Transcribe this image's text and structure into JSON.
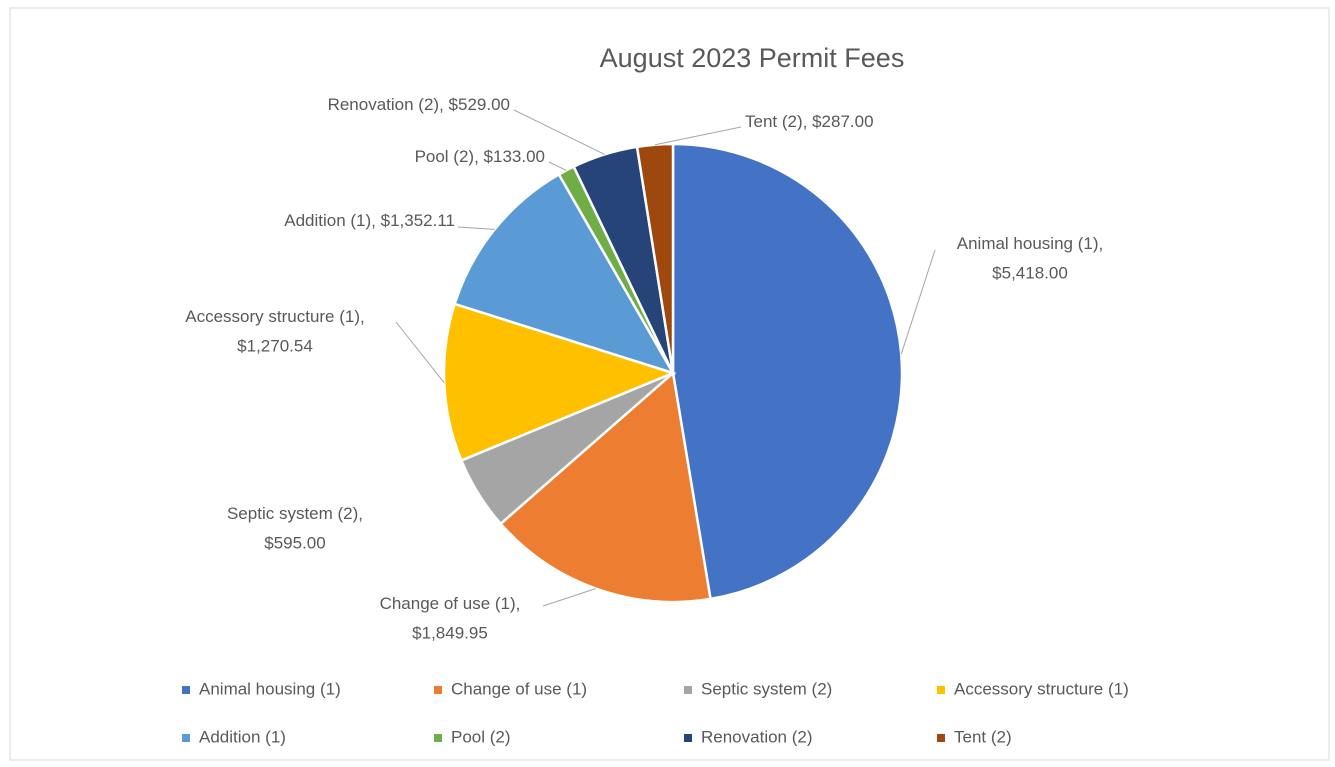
{
  "chart_data": {
    "type": "pie",
    "title": "August 2023 Permit Fees",
    "categories": [
      "Animal housing (1)",
      "Change of use (1)",
      "Septic system (2)",
      "Accessory structure (1)",
      "Addition (1)",
      "Pool (2)",
      "Renovation (2)",
      "Tent (2)"
    ],
    "values": [
      5418.0,
      1849.95,
      595.0,
      1270.54,
      1352.11,
      133.0,
      529.0,
      287.0
    ],
    "value_labels": [
      "$5,418.00",
      "$1,849.95",
      "$595.00",
      "$1,270.54",
      "$1,352.11",
      "$133.00",
      "$529.00",
      "$287.00"
    ],
    "colors": [
      "#4472c4",
      "#ed7d31",
      "#a5a5a5",
      "#ffc000",
      "#5b9bd5",
      "#70ad47",
      "#264478",
      "#9e480e"
    ],
    "legend": "bottom"
  }
}
